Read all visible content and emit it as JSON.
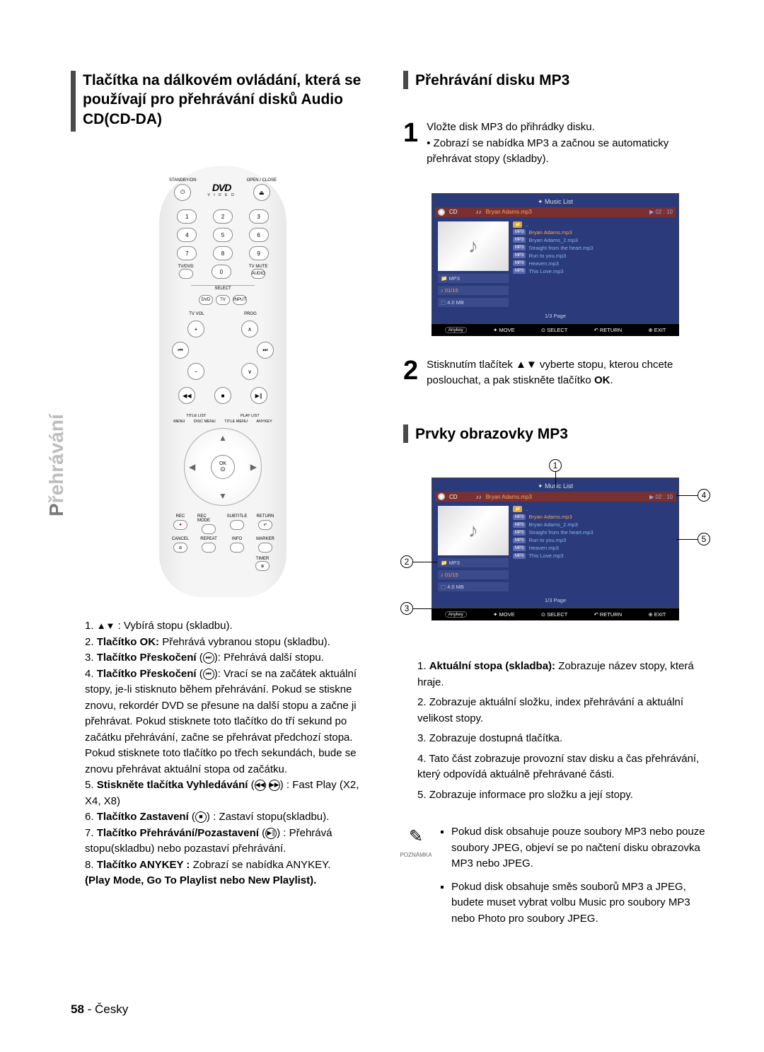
{
  "side_tab": {
    "accent": "P",
    "rest": "řehrávání"
  },
  "left": {
    "heading": "Tlačítka na dálkovém ovládání, která se používají pro přehrávání disků Audio CD(CD-DA)",
    "remote": {
      "standby": "STANDBY/ON",
      "openclose": "OPEN / CLOSE",
      "dvd_logo": "DVD",
      "dvd_sub": "V I D E O",
      "numbers": [
        "1",
        "2",
        "3",
        "4",
        "5",
        "6",
        "7",
        "8",
        "9",
        "0"
      ],
      "tvdvd": "TV/DVD",
      "tvmute": "TV MUTE",
      "audio": "AUDIO",
      "select": "SELECT",
      "dvd": "DVD",
      "tv": "TV",
      "input": "INPUT",
      "tvvol": "TV VOL",
      "prog": "PROG",
      "titlelist": "TITLE LIST",
      "playlist": "PLAY LIST",
      "menu": "MENU",
      "discmenu": "DISC MENU",
      "titlemenu": "TITLE MENU",
      "anykey": "ANYKEY",
      "ok": "OK",
      "rec": "REC",
      "recmode": "REC MODE",
      "subtitle": "SUBTITLE",
      "return": "RETURN",
      "cancel": "CANCEL",
      "repeat": "REPEAT",
      "info": "INFO",
      "marker": "MARKER",
      "timer": "TIMER"
    },
    "list": [
      {
        "pre": "1. ",
        "icon": "▲▼",
        "bold": "",
        "text": " : Vybírá stopu (skladbu)."
      },
      {
        "pre": "2. ",
        "bold": "Tlačítko OK: ",
        "text": "Přehrává vybranou stopu (skladbu)."
      },
      {
        "pre": "3. ",
        "bold": "Tlačítko Přeskočení ",
        "icon_after": "⏭",
        "text": ": Přehrává další stopu."
      },
      {
        "pre": "4. ",
        "bold": "Tlačítko Přeskočení ",
        "icon_after": "⏮",
        "text": ": Vrací se na začátek aktuální stopy, je-li stisknuto během přehrávání. Pokud se stiskne znovu, rekordér DVD se přesune na další stopu a začne ji přehrávat. Pokud stisknete toto tlačítko do tří sekund po začátku přehrávání, začne se přehrávat předchozí stopa.",
        "text2": "Pokud stisknete toto tlačítko po třech sekundách, bude se znovu přehrávat aktuální stopa od začátku."
      },
      {
        "pre": "5. ",
        "bold": "Stiskněte tlačítka Vyhledávání ",
        "icon_after2": "⏪⏩",
        "text": " : Fast Play (X2, X4, X8)"
      },
      {
        "pre": "6. ",
        "bold": "Tlačítko Zastavení ",
        "icon_after": "■",
        "text": " : Zastaví stopu(skladbu)."
      },
      {
        "pre": "7. ",
        "bold": "Tlačítko Přehrávání/Pozastavení ",
        "icon_after": "▶∥",
        "text": " : Přehrává stopu(skladbu) nebo pozastaví přehrávání."
      },
      {
        "pre": "8. ",
        "bold": "Tlačítko ANYKEY : ",
        "text": "Zobrazí se nabídka ANYKEY.",
        "sub_bold": "(Play Mode, Go To Playlist nebo New Playlist)."
      }
    ]
  },
  "right": {
    "heading1": "Přehrávání disku MP3",
    "step1": {
      "num": "1",
      "line1": "Vložte disk MP3 do přihrádky disku.",
      "line2": "• Zobrazí se nabídka MP3 a začnou se automaticky přehrávat stopy (skladby)."
    },
    "screen": {
      "title": "Music List",
      "cd": "CD",
      "path": "Bryan Adams.mp3",
      "time": "02 : 10",
      "folder_mp3": "MP3",
      "index": "01/15",
      "size": "4.0 MB",
      "tracks": [
        {
          "type": "folder",
          "name": ".."
        },
        {
          "type": "mp3",
          "name": "Bryan Adams.mp3",
          "hl": true
        },
        {
          "type": "mp3",
          "name": "Bryan Adams_2.mp3"
        },
        {
          "type": "mp3",
          "name": "Straight from the heart.mp3"
        },
        {
          "type": "mp3",
          "name": "Run to you.mp3"
        },
        {
          "type": "mp3",
          "name": "Heaven.mp3"
        },
        {
          "type": "mp3",
          "name": "This Love.mp3"
        }
      ],
      "page": "1/3 Page",
      "btns": {
        "anykey": "Anykey",
        "move": "MOVE",
        "select": "SELECT",
        "return": "RETURN",
        "exit": "EXIT"
      }
    },
    "step2": {
      "num": "2",
      "text": "Stisknutím tlačítek ▲▼ vyberte stopu, kterou chcete poslouchat, a pak stiskněte tlačítko ",
      "bold": "OK",
      "after": "."
    },
    "heading2": "Prvky obrazovky MP3",
    "callouts": [
      "1",
      "2",
      "3",
      "4",
      "5"
    ],
    "desc": [
      {
        "pre": "1. ",
        "bold": "Aktuální stopa (skladba): ",
        "text": "Zobrazuje název stopy, která hraje."
      },
      {
        "pre": "2. ",
        "text": "Zobrazuje aktuální složku, index přehrávání a aktuální velikost stopy."
      },
      {
        "pre": "3. ",
        "text": "Zobrazuje dostupná tlačítka."
      },
      {
        "pre": "4. ",
        "text": "Tato část zobrazuje provozní stav disku a čas přehrávání, který odpovídá aktuálně přehrávané části."
      },
      {
        "pre": "5. ",
        "text": "Zobrazuje informace pro složku a její stopy."
      }
    ],
    "note": {
      "label": "POZNÁMKA",
      "items": [
        "Pokud disk obsahuje pouze soubory MP3 nebo pouze soubory JPEG, objeví se po načtení disku obrazovka MP3 nebo JPEG.",
        "Pokud disk obsahuje směs souborů MP3 a JPEG, budete muset vybrat volbu Music pro soubory MP3 nebo Photo pro soubory JPEG."
      ]
    }
  },
  "footer": {
    "page": "58",
    "sep": " - ",
    "lang": "Česky"
  },
  "colors": {
    "panel_bg": "#2a3a7a",
    "header_bg": "#7a3030",
    "orange": "#f4a460",
    "blue_text": "#8cb4f0",
    "info_text": "#c8d4f0"
  }
}
